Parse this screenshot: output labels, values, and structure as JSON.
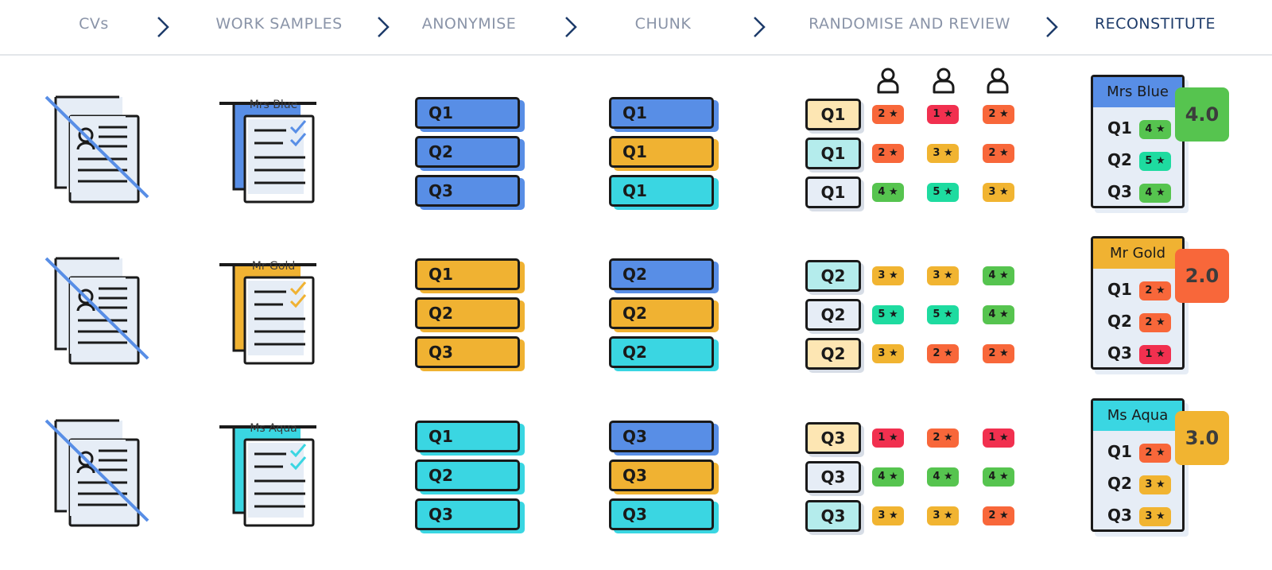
{
  "steps": [
    {
      "label": "CVs",
      "active": false
    },
    {
      "label": "WORK SAMPLES",
      "active": false
    },
    {
      "label": "ANONYMISE",
      "active": false
    },
    {
      "label": "CHUNK",
      "active": false
    },
    {
      "label": "RANDOMISE AND REVIEW",
      "active": false
    },
    {
      "label": "RECONSTITUTE",
      "active": true
    }
  ],
  "colors": {
    "blue": "#588ee6",
    "gold": "#f0b232",
    "aqua": "#3ad6e2",
    "pale_gold": "#fde6b3",
    "pale_aqua": "#b4ecec",
    "pale_blue": "#e6edf6",
    "r1": "#f1304f",
    "r2": "#f8673a",
    "r3": "#f1b431",
    "r4": "#56c44f",
    "r5": "#1edba0"
  },
  "candidates": [
    {
      "name": "Mrs Blue",
      "color": "blue",
      "anonymise": [
        "Q1",
        "Q2",
        "Q3"
      ],
      "chunk": [
        {
          "label": "Q1",
          "color": "blue"
        },
        {
          "label": "Q1",
          "color": "gold"
        },
        {
          "label": "Q1",
          "color": "aqua"
        }
      ],
      "review": [
        {
          "label": "Q1",
          "bg": "pale_gold",
          "ratings": [
            2,
            1,
            2
          ]
        },
        {
          "label": "Q1",
          "bg": "pale_aqua",
          "ratings": [
            2,
            3,
            2
          ]
        },
        {
          "label": "Q1",
          "bg": "pale_blue",
          "ratings": [
            4,
            5,
            3
          ]
        }
      ],
      "scores": [
        {
          "label": "Q1",
          "value": 4
        },
        {
          "label": "Q2",
          "value": 5
        },
        {
          "label": "Q3",
          "value": 4
        }
      ],
      "total": "4.0",
      "total_color": "r4"
    },
    {
      "name": "Mr Gold",
      "color": "gold",
      "anonymise": [
        "Q1",
        "Q2",
        "Q3"
      ],
      "chunk": [
        {
          "label": "Q2",
          "color": "blue"
        },
        {
          "label": "Q2",
          "color": "gold"
        },
        {
          "label": "Q2",
          "color": "aqua"
        }
      ],
      "review": [
        {
          "label": "Q2",
          "bg": "pale_aqua",
          "ratings": [
            3,
            3,
            4
          ]
        },
        {
          "label": "Q2",
          "bg": "pale_blue",
          "ratings": [
            5,
            5,
            4
          ]
        },
        {
          "label": "Q2",
          "bg": "pale_gold",
          "ratings": [
            3,
            2,
            2
          ]
        }
      ],
      "scores": [
        {
          "label": "Q1",
          "value": 2
        },
        {
          "label": "Q2",
          "value": 2
        },
        {
          "label": "Q3",
          "value": 1
        }
      ],
      "total": "2.0",
      "total_color": "r2"
    },
    {
      "name": "Ms Aqua",
      "color": "aqua",
      "anonymise": [
        "Q1",
        "Q2",
        "Q3"
      ],
      "chunk": [
        {
          "label": "Q3",
          "color": "blue"
        },
        {
          "label": "Q3",
          "color": "gold"
        },
        {
          "label": "Q3",
          "color": "aqua"
        }
      ],
      "review": [
        {
          "label": "Q3",
          "bg": "pale_gold",
          "ratings": [
            1,
            2,
            1
          ]
        },
        {
          "label": "Q3",
          "bg": "pale_blue",
          "ratings": [
            4,
            4,
            4
          ]
        },
        {
          "label": "Q3",
          "bg": "pale_aqua",
          "ratings": [
            3,
            3,
            2
          ]
        }
      ],
      "scores": [
        {
          "label": "Q1",
          "value": 2
        },
        {
          "label": "Q2",
          "value": 3
        },
        {
          "label": "Q3",
          "value": 3
        }
      ],
      "total": "3.0",
      "total_color": "r3"
    }
  ],
  "icons": {
    "step_separator": "chevron-right-icon",
    "reviewer": "user-icon",
    "rating": "star-icon",
    "cv": "cv-document-icon",
    "work_sample": "work-sample-icon"
  }
}
